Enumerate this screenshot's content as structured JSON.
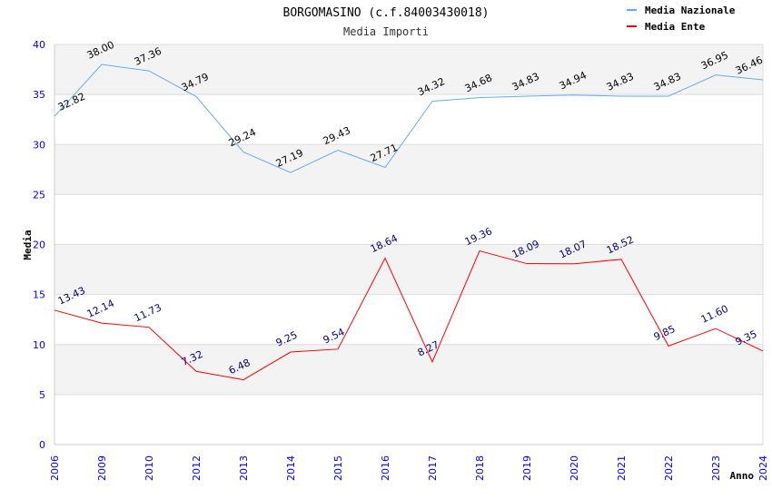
{
  "chart_data": {
    "type": "line",
    "title": "BORGOMASINO (c.f.84003430018)",
    "subtitle": "Media Importi",
    "xlabel": "Anno",
    "ylabel": "Media",
    "ylim": [
      0,
      40
    ],
    "yticks": [
      0,
      5,
      10,
      15,
      20,
      25,
      30,
      35,
      40
    ],
    "categories": [
      "2006",
      "2009",
      "2010",
      "2012",
      "2013",
      "2014",
      "2015",
      "2016",
      "2017",
      "2018",
      "2019",
      "2020",
      "2021",
      "2022",
      "2023",
      "2024"
    ],
    "legend_position": "top-right",
    "series": [
      {
        "name": "Media Nazionale",
        "color": "#66aaee",
        "label_color": "#000000",
        "values": [
          32.82,
          38.0,
          37.36,
          34.79,
          29.24,
          27.19,
          29.43,
          27.71,
          34.32,
          34.68,
          34.83,
          34.94,
          34.83,
          34.83,
          36.95,
          36.46
        ]
      },
      {
        "name": "Media Ente",
        "color": "#ff0000",
        "label_color": "#000080",
        "values": [
          13.43,
          12.14,
          11.73,
          7.32,
          6.48,
          9.25,
          9.54,
          18.64,
          8.27,
          19.36,
          18.09,
          18.07,
          18.52,
          9.85,
          11.6,
          9.35
        ]
      }
    ]
  }
}
